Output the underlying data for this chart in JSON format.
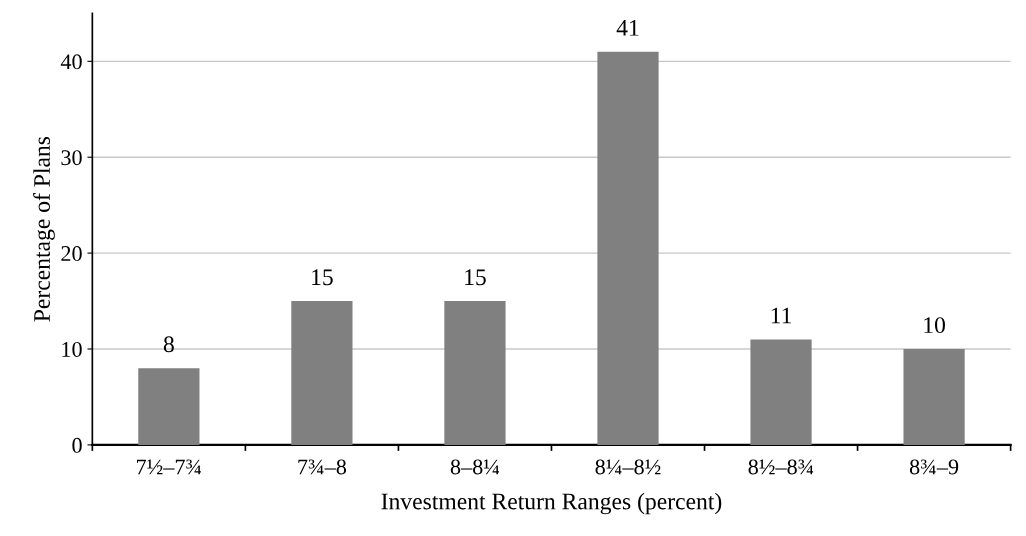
{
  "chart_data": {
    "type": "bar",
    "xlabel": "Investment Return Ranges (percent)",
    "ylabel": "Percentage of Plans",
    "categories": [
      "7½–7¾",
      "7¾–8",
      "8–8¼",
      "8¼–8½",
      "8½–8¾",
      "8¾–9"
    ],
    "values": [
      8,
      15,
      15,
      41,
      11,
      10
    ],
    "color": "#808080",
    "ylim": [
      0,
      45
    ],
    "yticks": [
      0,
      10,
      20,
      30,
      40
    ],
    "grid": "y",
    "data_labels": true,
    "legend": false
  }
}
